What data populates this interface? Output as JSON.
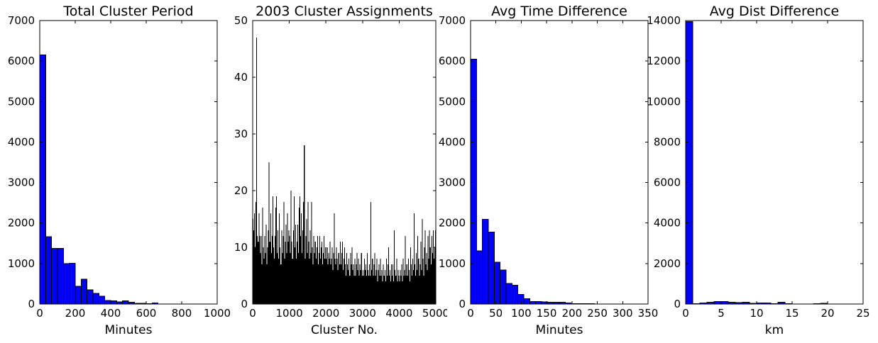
{
  "figure": {
    "background": "#ffffff",
    "text_color": "#000000",
    "spine_color": "#000000",
    "bar_edge_color": "#000000"
  },
  "chart_data": [
    {
      "type": "bar",
      "title": "Total Cluster Period",
      "xlabel": "Minutes",
      "ylabel": "",
      "xlim": [
        0,
        1000
      ],
      "ylim": [
        0,
        7000
      ],
      "xticks": [
        0,
        200,
        400,
        600,
        800,
        1000
      ],
      "yticks": [
        0,
        1000,
        2000,
        3000,
        4000,
        5000,
        6000,
        7000
      ],
      "grid": false,
      "legend": false,
      "bar_color": "#0000ff",
      "bar_edge": true,
      "bin_start": 0,
      "values": [
        6150,
        1660,
        1370,
        1370,
        1000,
        1010,
        440,
        610,
        350,
        260,
        190,
        85,
        80,
        55,
        75,
        45,
        20,
        15,
        10,
        30,
        0,
        0,
        0,
        0,
        0,
        0,
        0,
        0,
        0,
        0
      ]
    },
    {
      "type": "bar",
      "title": "2003 Cluster Assignments",
      "xlabel": "Cluster No.",
      "ylabel": "",
      "xlim": [
        0,
        5000
      ],
      "ylim": [
        0,
        50
      ],
      "xticks": [
        0,
        1000,
        2000,
        3000,
        4000,
        5000
      ],
      "yticks": [
        0,
        10,
        20,
        30,
        40,
        50
      ],
      "grid": false,
      "legend": false,
      "bar_color": "#000000",
      "bar_edge": false,
      "bin_start": 0,
      "values": [
        15,
        13,
        16,
        10,
        18,
        47,
        12,
        11,
        16,
        12,
        9,
        12,
        7,
        17,
        10,
        8,
        12,
        9,
        14,
        7,
        10,
        13,
        25,
        11,
        16,
        9,
        12,
        19,
        10,
        8,
        12,
        17,
        19,
        9,
        13,
        8,
        16,
        10,
        7,
        13,
        9,
        12,
        18,
        8,
        11,
        14,
        9,
        16,
        11,
        13,
        12,
        9,
        20,
        11,
        8,
        13,
        19,
        10,
        14,
        8,
        11,
        14,
        9,
        17,
        19,
        12,
        16,
        9,
        13,
        18,
        28,
        8,
        12,
        15,
        9,
        18,
        11,
        8,
        13,
        9,
        18,
        10,
        7,
        12,
        9,
        11,
        8,
        10,
        12,
        7,
        9,
        12,
        8,
        10,
        11,
        7,
        9,
        12,
        8,
        10,
        8,
        10,
        7,
        9,
        8,
        11,
        7,
        8,
        10,
        6,
        9,
        16,
        8,
        7,
        10,
        8,
        6,
        9,
        7,
        11,
        7,
        9,
        11,
        6,
        8,
        10,
        7,
        5,
        9,
        7,
        6,
        8,
        5,
        9,
        7,
        10,
        6,
        7,
        5,
        8,
        5,
        7,
        9,
        6,
        8,
        5,
        7,
        6,
        9,
        5,
        6,
        5,
        8,
        6,
        7,
        5,
        9,
        6,
        5,
        7,
        5,
        18,
        6,
        8,
        5,
        7,
        9,
        5,
        6,
        8,
        4,
        6,
        7,
        5,
        8,
        5,
        6,
        4,
        7,
        5,
        6,
        4,
        8,
        5,
        7,
        10,
        5,
        6,
        4,
        7,
        5,
        7,
        4,
        13,
        6,
        5,
        8,
        4,
        6,
        5,
        4,
        6,
        5,
        7,
        4,
        8,
        5,
        6,
        12,
        5,
        7,
        5,
        8,
        6,
        4,
        10,
        7,
        5,
        8,
        6,
        16,
        7,
        5,
        9,
        6,
        12,
        8,
        5,
        7,
        11,
        6,
        15,
        8,
        5,
        10,
        13,
        7,
        9,
        6,
        12,
        8,
        13,
        10,
        7,
        12,
        9,
        13,
        8,
        10,
        13
      ]
    },
    {
      "type": "bar",
      "title": "Avg Time Difference",
      "xlabel": "Minutes",
      "ylabel": "",
      "xlim": [
        0,
        350
      ],
      "ylim": [
        0,
        7000
      ],
      "xticks": [
        0,
        50,
        100,
        150,
        200,
        250,
        300,
        350
      ],
      "yticks": [
        0,
        1000,
        2000,
        3000,
        4000,
        5000,
        6000,
        7000
      ],
      "grid": false,
      "legend": false,
      "bar_color": "#0000ff",
      "bar_edge": true,
      "bin_start": 0,
      "values": [
        6050,
        1310,
        2090,
        1780,
        1030,
        840,
        510,
        460,
        240,
        130,
        60,
        65,
        55,
        45,
        40,
        45,
        30,
        12,
        10,
        10,
        10,
        0,
        0,
        0,
        0,
        0,
        0,
        0,
        0,
        0
      ]
    },
    {
      "type": "bar",
      "title": "Avg Dist Difference",
      "xlabel": "km",
      "ylabel": "",
      "xlim": [
        0,
        25
      ],
      "ylim": [
        0,
        14000
      ],
      "xticks": [
        0,
        5,
        10,
        15,
        20,
        25
      ],
      "yticks": [
        0,
        2000,
        4000,
        6000,
        8000,
        10000,
        12000,
        14000
      ],
      "grid": false,
      "legend": false,
      "bar_color": "#0000ff",
      "bar_edge": true,
      "bin_start": 0,
      "values": [
        13950,
        20,
        60,
        90,
        130,
        130,
        80,
        70,
        90,
        40,
        50,
        50,
        20,
        80,
        10,
        0,
        0,
        0,
        15,
        40,
        0,
        0,
        0,
        0,
        0
      ]
    }
  ]
}
